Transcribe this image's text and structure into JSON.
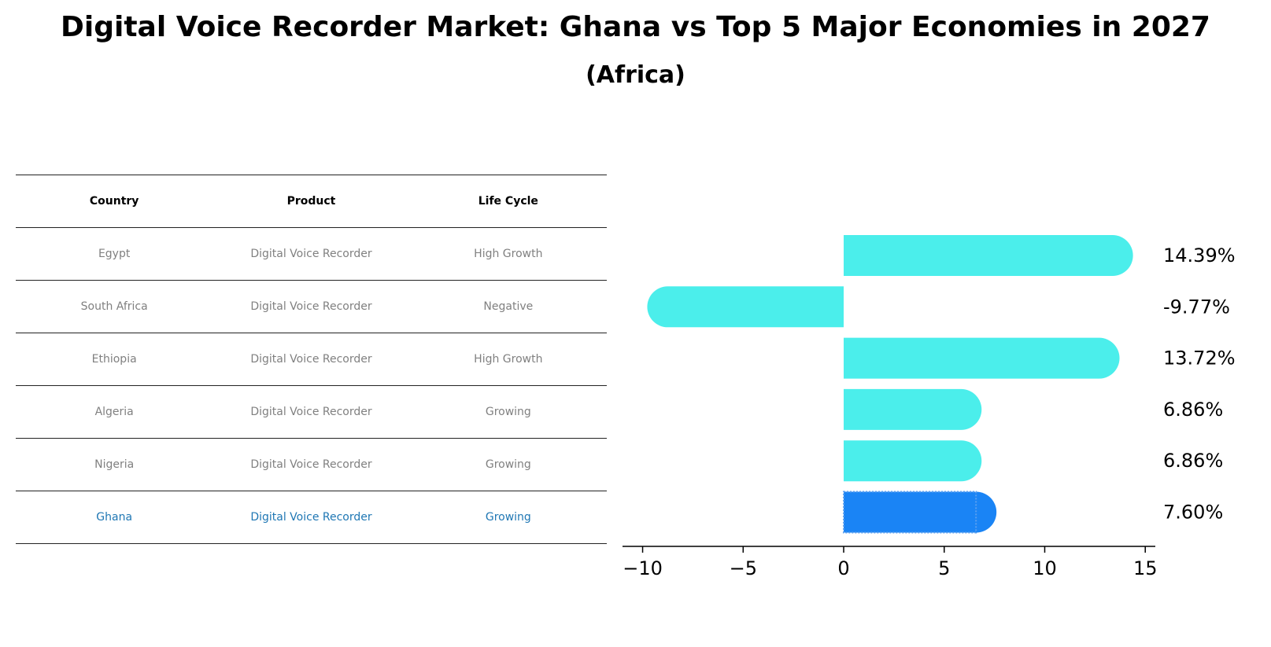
{
  "title": "Digital Voice Recorder Market: Ghana vs Top 5 Major Economies in 2027",
  "subtitle": "(Africa)",
  "table": {
    "headers": [
      "Country",
      "Product",
      "Life Cycle"
    ],
    "rows": [
      [
        "Egypt",
        "Digital Voice Recorder",
        "High Growth"
      ],
      [
        "South Africa",
        "Digital Voice Recorder",
        "Negative"
      ],
      [
        "Ethiopia",
        "Digital Voice Recorder",
        "High Growth"
      ],
      [
        "Algeria",
        "Digital Voice Recorder",
        "Growing"
      ],
      [
        "Nigeria",
        "Digital Voice Recorder",
        "Growing"
      ],
      [
        "Ghana",
        "Digital Voice Recorder",
        "Growing"
      ]
    ],
    "highlight_row": 5
  },
  "chart_data": {
    "type": "bar",
    "orientation": "horizontal",
    "categories": [
      "Egypt",
      "South Africa",
      "Ethiopia",
      "Algeria",
      "Nigeria",
      "Ghana"
    ],
    "values": [
      14.39,
      -9.77,
      13.72,
      6.86,
      6.86,
      7.6
    ],
    "value_labels": [
      "14.39%",
      "-9.77%",
      "13.72%",
      "6.86%",
      "6.86%",
      "7.60%"
    ],
    "xlim": [
      -11,
      15.5
    ],
    "xticks": [
      -10,
      -5,
      0,
      5,
      10,
      15
    ],
    "xtick_labels": [
      "−10",
      "−5",
      "0",
      "5",
      "10",
      "15"
    ],
    "highlight_index": 5,
    "colors": {
      "bar": "#4beeeb",
      "highlight": "#1a84f5",
      "highlight_border": "#5a9ff0"
    }
  }
}
